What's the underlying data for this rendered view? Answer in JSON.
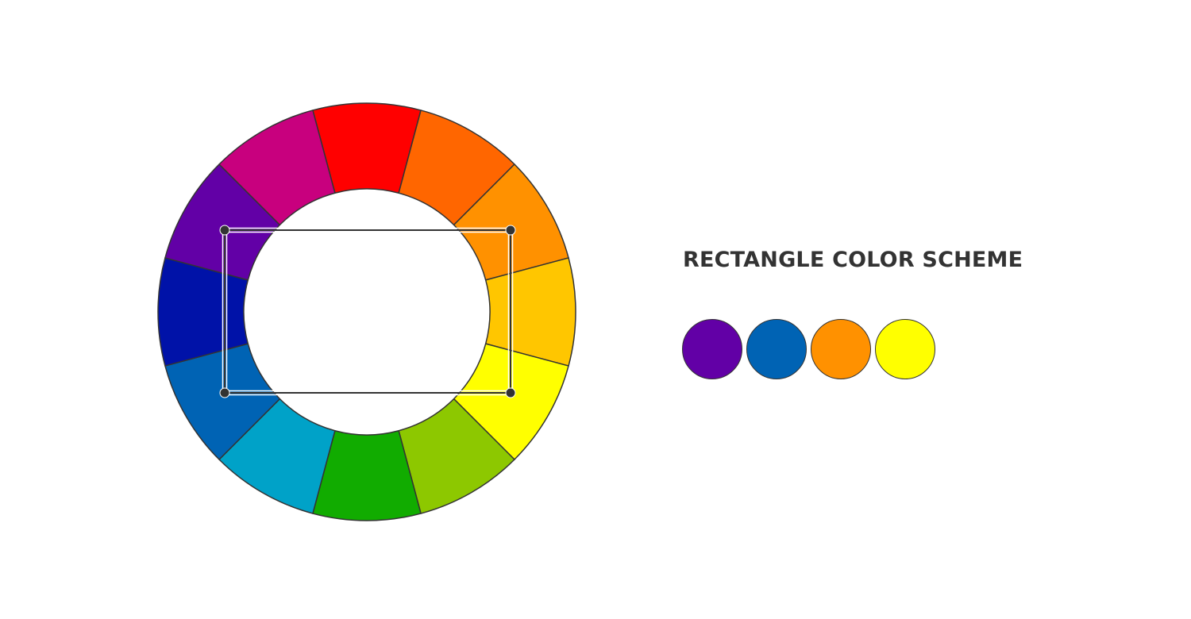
{
  "wheel": {
    "segments": [
      {
        "name": "red",
        "color": "#FF0000"
      },
      {
        "name": "red-orange",
        "color": "#FF6600"
      },
      {
        "name": "orange",
        "color": "#FF9100"
      },
      {
        "name": "yellow-orange",
        "color": "#FFC600"
      },
      {
        "name": "yellow",
        "color": "#FFFF00"
      },
      {
        "name": "yellow-green",
        "color": "#8DC800"
      },
      {
        "name": "green",
        "color": "#11AC00"
      },
      {
        "name": "blue-green",
        "color": "#00A2C8"
      },
      {
        "name": "blue",
        "color": "#0063B4"
      },
      {
        "name": "blue-violet",
        "color": "#0012A8"
      },
      {
        "name": "violet",
        "color": "#6200A6"
      },
      {
        "name": "red-violet",
        "color": "#C8007E"
      }
    ],
    "outline_color": "#333333",
    "selected": [
      "violet",
      "orange",
      "yellow",
      "blue"
    ]
  },
  "scheme": {
    "title": "RECTANGLE COLOR SCHEME",
    "swatches": [
      {
        "name": "violet",
        "color": "#6200A6"
      },
      {
        "name": "blue",
        "color": "#0063B4"
      },
      {
        "name": "orange",
        "color": "#FF9100"
      },
      {
        "name": "yellow",
        "color": "#FFFF00"
      }
    ]
  }
}
